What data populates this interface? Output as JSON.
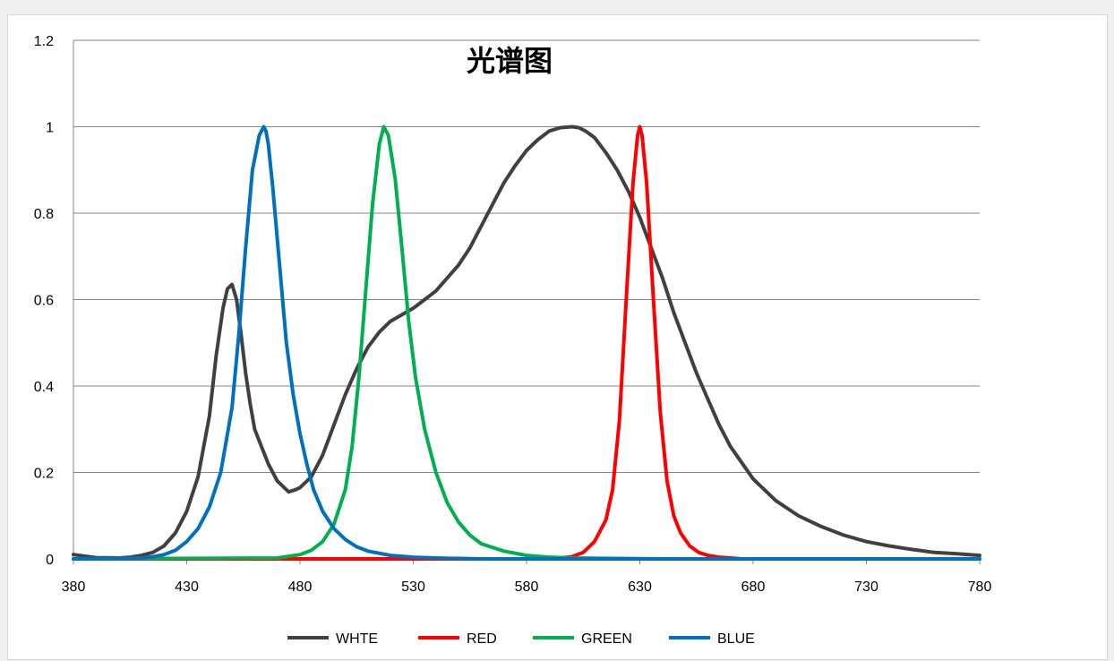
{
  "chart_data": {
    "type": "line",
    "title": "光谱图",
    "xlabel": "",
    "ylabel": "",
    "xlim": [
      380,
      780
    ],
    "ylim": [
      0,
      1.2
    ],
    "xticks": [
      380,
      430,
      480,
      530,
      580,
      630,
      680,
      730,
      780
    ],
    "xtick_labels": [
      "380",
      "430",
      "480",
      "530",
      "580",
      "630",
      "680",
      "730",
      "780"
    ],
    "yticks": [
      0,
      0.2,
      0.4,
      0.6,
      0.8,
      1,
      1.2
    ],
    "ytick_labels": [
      "0",
      "0.2",
      "0.4",
      "0.6",
      "0.8",
      "1",
      "1.2"
    ],
    "grid": "horizontal",
    "legend_position": "bottom",
    "series": [
      {
        "name": "WHTE",
        "color": "#404040",
        "x": [
          380,
          390,
          400,
          405,
          410,
          415,
          420,
          425,
          430,
          435,
          440,
          443,
          446,
          448,
          450,
          452,
          454,
          456,
          458,
          460,
          463,
          466,
          470,
          475,
          478,
          480,
          485,
          490,
          495,
          500,
          505,
          510,
          515,
          520,
          525,
          530,
          535,
          540,
          545,
          550,
          555,
          560,
          565,
          570,
          575,
          580,
          585,
          590,
          595,
          600,
          603,
          606,
          610,
          615,
          620,
          625,
          630,
          635,
          640,
          645,
          650,
          655,
          660,
          665,
          670,
          680,
          690,
          700,
          710,
          720,
          730,
          740,
          750,
          760,
          770,
          780
        ],
        "y": [
          0.01,
          0.003,
          0.002,
          0.004,
          0.008,
          0.015,
          0.03,
          0.06,
          0.11,
          0.19,
          0.33,
          0.47,
          0.58,
          0.625,
          0.635,
          0.6,
          0.52,
          0.43,
          0.36,
          0.3,
          0.26,
          0.22,
          0.18,
          0.155,
          0.16,
          0.165,
          0.19,
          0.24,
          0.31,
          0.38,
          0.44,
          0.49,
          0.525,
          0.55,
          0.565,
          0.58,
          0.6,
          0.62,
          0.65,
          0.68,
          0.72,
          0.77,
          0.82,
          0.87,
          0.91,
          0.945,
          0.97,
          0.99,
          0.998,
          1.0,
          0.998,
          0.99,
          0.975,
          0.94,
          0.9,
          0.85,
          0.79,
          0.72,
          0.65,
          0.57,
          0.5,
          0.43,
          0.37,
          0.31,
          0.26,
          0.185,
          0.135,
          0.1,
          0.075,
          0.055,
          0.04,
          0.03,
          0.022,
          0.015,
          0.012,
          0.008
        ]
      },
      {
        "name": "RED",
        "color": "#ff0000",
        "x": [
          380,
          590,
          600,
          605,
          610,
          615,
          618,
          621,
          624,
          627,
          629,
          630,
          631,
          633,
          636,
          639,
          642,
          645,
          648,
          652,
          656,
          660,
          665,
          670,
          675,
          780
        ],
        "y": [
          0,
          0,
          0.005,
          0.015,
          0.04,
          0.09,
          0.16,
          0.32,
          0.6,
          0.87,
          0.98,
          1.0,
          0.98,
          0.87,
          0.6,
          0.34,
          0.18,
          0.1,
          0.06,
          0.03,
          0.015,
          0.008,
          0.004,
          0.002,
          0,
          0
        ]
      },
      {
        "name": "GREEN",
        "color": "#00b050",
        "x": [
          380,
          470,
          480,
          485,
          490,
          495,
          500,
          503,
          506,
          509,
          512,
          515,
          517,
          519,
          522,
          525,
          528,
          531,
          535,
          540,
          545,
          550,
          555,
          560,
          570,
          580,
          590,
          600,
          620,
          640,
          780
        ],
        "y": [
          0,
          0.002,
          0.01,
          0.02,
          0.04,
          0.08,
          0.16,
          0.26,
          0.42,
          0.62,
          0.82,
          0.96,
          1.0,
          0.98,
          0.88,
          0.72,
          0.55,
          0.42,
          0.3,
          0.2,
          0.13,
          0.085,
          0.055,
          0.035,
          0.018,
          0.008,
          0.004,
          0.002,
          0.001,
          0,
          0
        ]
      },
      {
        "name": "BLUE",
        "color": "#0070c0",
        "x": [
          380,
          410,
          415,
          420,
          425,
          430,
          435,
          440,
          445,
          450,
          453,
          456,
          459,
          462,
          464,
          465,
          466,
          468,
          471,
          474,
          477,
          480,
          483,
          486,
          490,
          495,
          500,
          505,
          510,
          520,
          530,
          540,
          560,
          780
        ],
        "y": [
          0,
          0.002,
          0.005,
          0.01,
          0.02,
          0.04,
          0.07,
          0.12,
          0.2,
          0.35,
          0.52,
          0.72,
          0.9,
          0.98,
          1.0,
          0.99,
          0.96,
          0.86,
          0.68,
          0.5,
          0.38,
          0.29,
          0.22,
          0.16,
          0.11,
          0.07,
          0.045,
          0.028,
          0.018,
          0.008,
          0.004,
          0.002,
          0,
          0
        ]
      }
    ]
  }
}
